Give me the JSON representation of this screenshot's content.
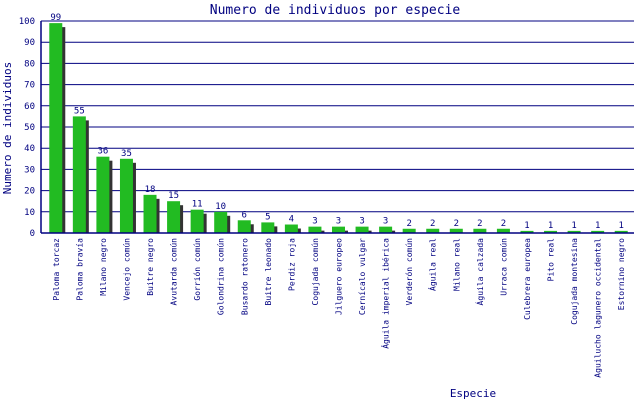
{
  "chart_data": {
    "type": "bar",
    "title": "Numero de individuos por especie",
    "xlabel": "Especie",
    "ylabel": "Numero de individuos",
    "ylim": [
      0,
      100
    ],
    "yticks": [
      0,
      10,
      20,
      30,
      40,
      50,
      60,
      70,
      80,
      90,
      100
    ],
    "grid": true,
    "categories": [
      "Paloma torcaz",
      "Paloma bravía",
      "Milano negro",
      "Vencejo común",
      "Buitre negro",
      "Avutarda común",
      "Gorrión común",
      "Golondrina común",
      "Busardo ratonero",
      "Buitre leonado",
      "Perdiz roja",
      "Cogujada común",
      "Jilguero europeo",
      "Cernícalo vulgar",
      "Águila imperial ibérica",
      "Verderón común",
      "Águila real",
      "Milano real",
      "Águila calzada",
      "Urraca común",
      "Culebrera europea",
      "Pito real",
      "Cogujada montesina",
      "Aguilucho lagunero occidental",
      "Estornino negro"
    ],
    "values": [
      99,
      55,
      36,
      35,
      18,
      15,
      11,
      10,
      6,
      5,
      4,
      3,
      3,
      3,
      3,
      2,
      2,
      2,
      2,
      2,
      1,
      1,
      1,
      1,
      1
    ],
    "colors": {
      "bar": "#22bb22",
      "shadow": "#333333",
      "grid": "#000080",
      "text": "#000080",
      "axis": "#000080"
    }
  }
}
